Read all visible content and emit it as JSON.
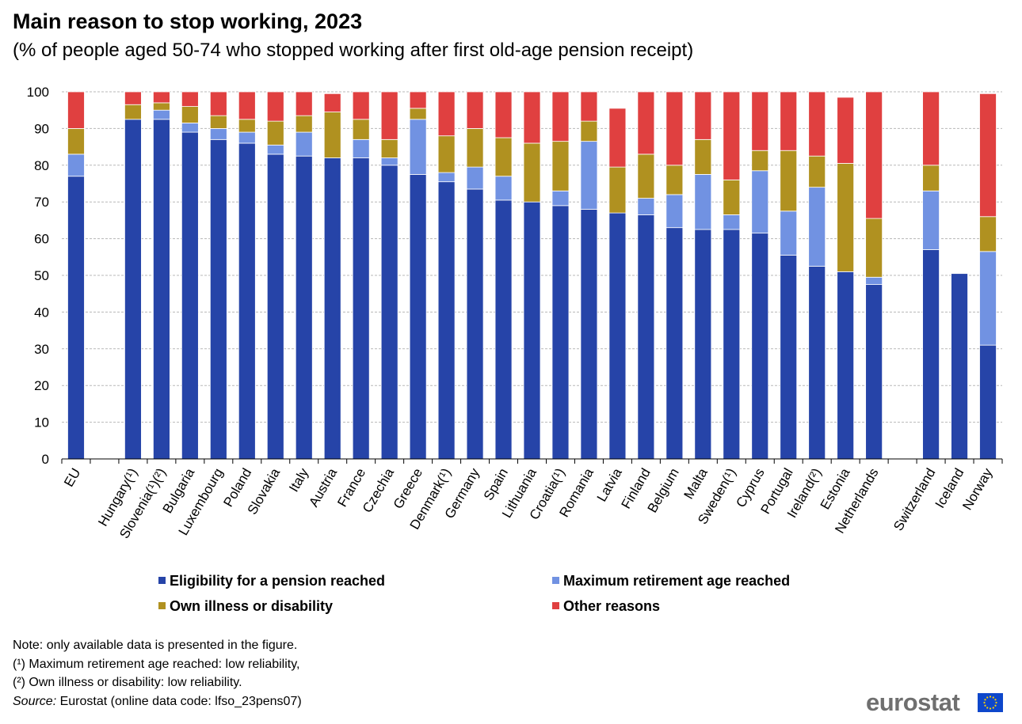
{
  "title": "Main reason to stop working, 2023",
  "subtitle": "(% of people aged 50-74 who stopped working after first old-age pension receipt)",
  "chart_data": {
    "type": "bar",
    "stacked": true,
    "title": "Main reason to stop working, 2023",
    "subtitle": "(% of people aged 50-74 who stopped working after first old-age pension receipt)",
    "ylim": [
      0,
      100
    ],
    "yticks": [
      0,
      10,
      20,
      30,
      40,
      50,
      60,
      70,
      80,
      90,
      100
    ],
    "grid": true,
    "categories": [
      "EU",
      "",
      "Hungary(¹)",
      "Slovenia(¹)(²)",
      "Bulgaria",
      "Luxembourg",
      "Poland",
      "Slovakia",
      "Italy",
      "Austria",
      "France",
      "Czechia",
      "Greece",
      "Denmark(¹)",
      "Germany",
      "Spain",
      "Lithuania",
      "Croatia(¹)",
      "Romania",
      "Latvia",
      "Finland",
      "Belgium",
      "Malta",
      "Sweden(¹)",
      "Cyprus",
      "Portugal",
      "Ireland(²)",
      "Estonia",
      "Netherlands",
      "",
      "Switzerland",
      "Iceland",
      "Norway"
    ],
    "series": [
      {
        "name": "Eligibility for a pension reached",
        "color": "#2644a8",
        "values": [
          77.0,
          null,
          92.5,
          92.5,
          89.0,
          87.0,
          86.0,
          83.0,
          82.5,
          82.0,
          82.0,
          80.0,
          77.5,
          75.5,
          73.5,
          70.5,
          70.0,
          69.0,
          68.0,
          67.0,
          66.5,
          63.0,
          62.5,
          62.5,
          61.5,
          55.5,
          52.5,
          51.0,
          47.5,
          null,
          57.0,
          50.5,
          31.0
        ]
      },
      {
        "name": "Maximum retirement age reached",
        "color": "#7192e2",
        "values": [
          6.0,
          null,
          0,
          2.5,
          2.5,
          3.0,
          3.0,
          2.5,
          6.5,
          0,
          5.0,
          2.0,
          15.0,
          2.5,
          6.0,
          6.5,
          0,
          4.0,
          18.5,
          0,
          4.5,
          9.0,
          15.0,
          4.0,
          17.0,
          12.0,
          21.5,
          0,
          2.0,
          null,
          16.0,
          0,
          25.5
        ]
      },
      {
        "name": "Own illness or disability",
        "color": "#b09120",
        "values": [
          7.0,
          null,
          4.0,
          2.0,
          4.5,
          3.5,
          3.5,
          6.5,
          4.5,
          12.5,
          5.5,
          5.0,
          3.0,
          10.0,
          10.5,
          10.5,
          16.0,
          13.5,
          5.5,
          12.5,
          12.0,
          8.0,
          9.5,
          9.5,
          5.5,
          16.5,
          8.5,
          29.5,
          16.0,
          null,
          7.0,
          0,
          9.5
        ]
      },
      {
        "name": "Other reasons",
        "color": "#e04040",
        "values": [
          10.0,
          null,
          3.5,
          3.0,
          4.0,
          6.5,
          7.5,
          8.0,
          6.5,
          5.0,
          7.5,
          13.0,
          4.5,
          12.0,
          10.0,
          12.5,
          14.0,
          13.5,
          8.0,
          16.0,
          17.0,
          20.0,
          13.0,
          24.0,
          16.0,
          16.0,
          17.5,
          18.0,
          34.5,
          null,
          20.0,
          0,
          33.5
        ]
      }
    ],
    "legend_position": "bottom"
  },
  "legend": {
    "items": [
      {
        "label": "Eligibility for a pension reached",
        "color": "#2644a8"
      },
      {
        "label": "Maximum retirement age reached",
        "color": "#7192e2"
      },
      {
        "label": "Own illness or disability",
        "color": "#b09120"
      },
      {
        "label": "Other reasons",
        "color": "#e04040"
      }
    ]
  },
  "notes": {
    "line1": "Note: only available data is presented in the figure.",
    "line2": "(¹) Maximum retirement age reached: low reliability,",
    "line3": "(²) Own illness or disability: low reliability.",
    "source_label": "Source:",
    "source_text": " Eurostat (online data code: lfso_23pens07)"
  },
  "logo": {
    "text": "eurostat"
  }
}
